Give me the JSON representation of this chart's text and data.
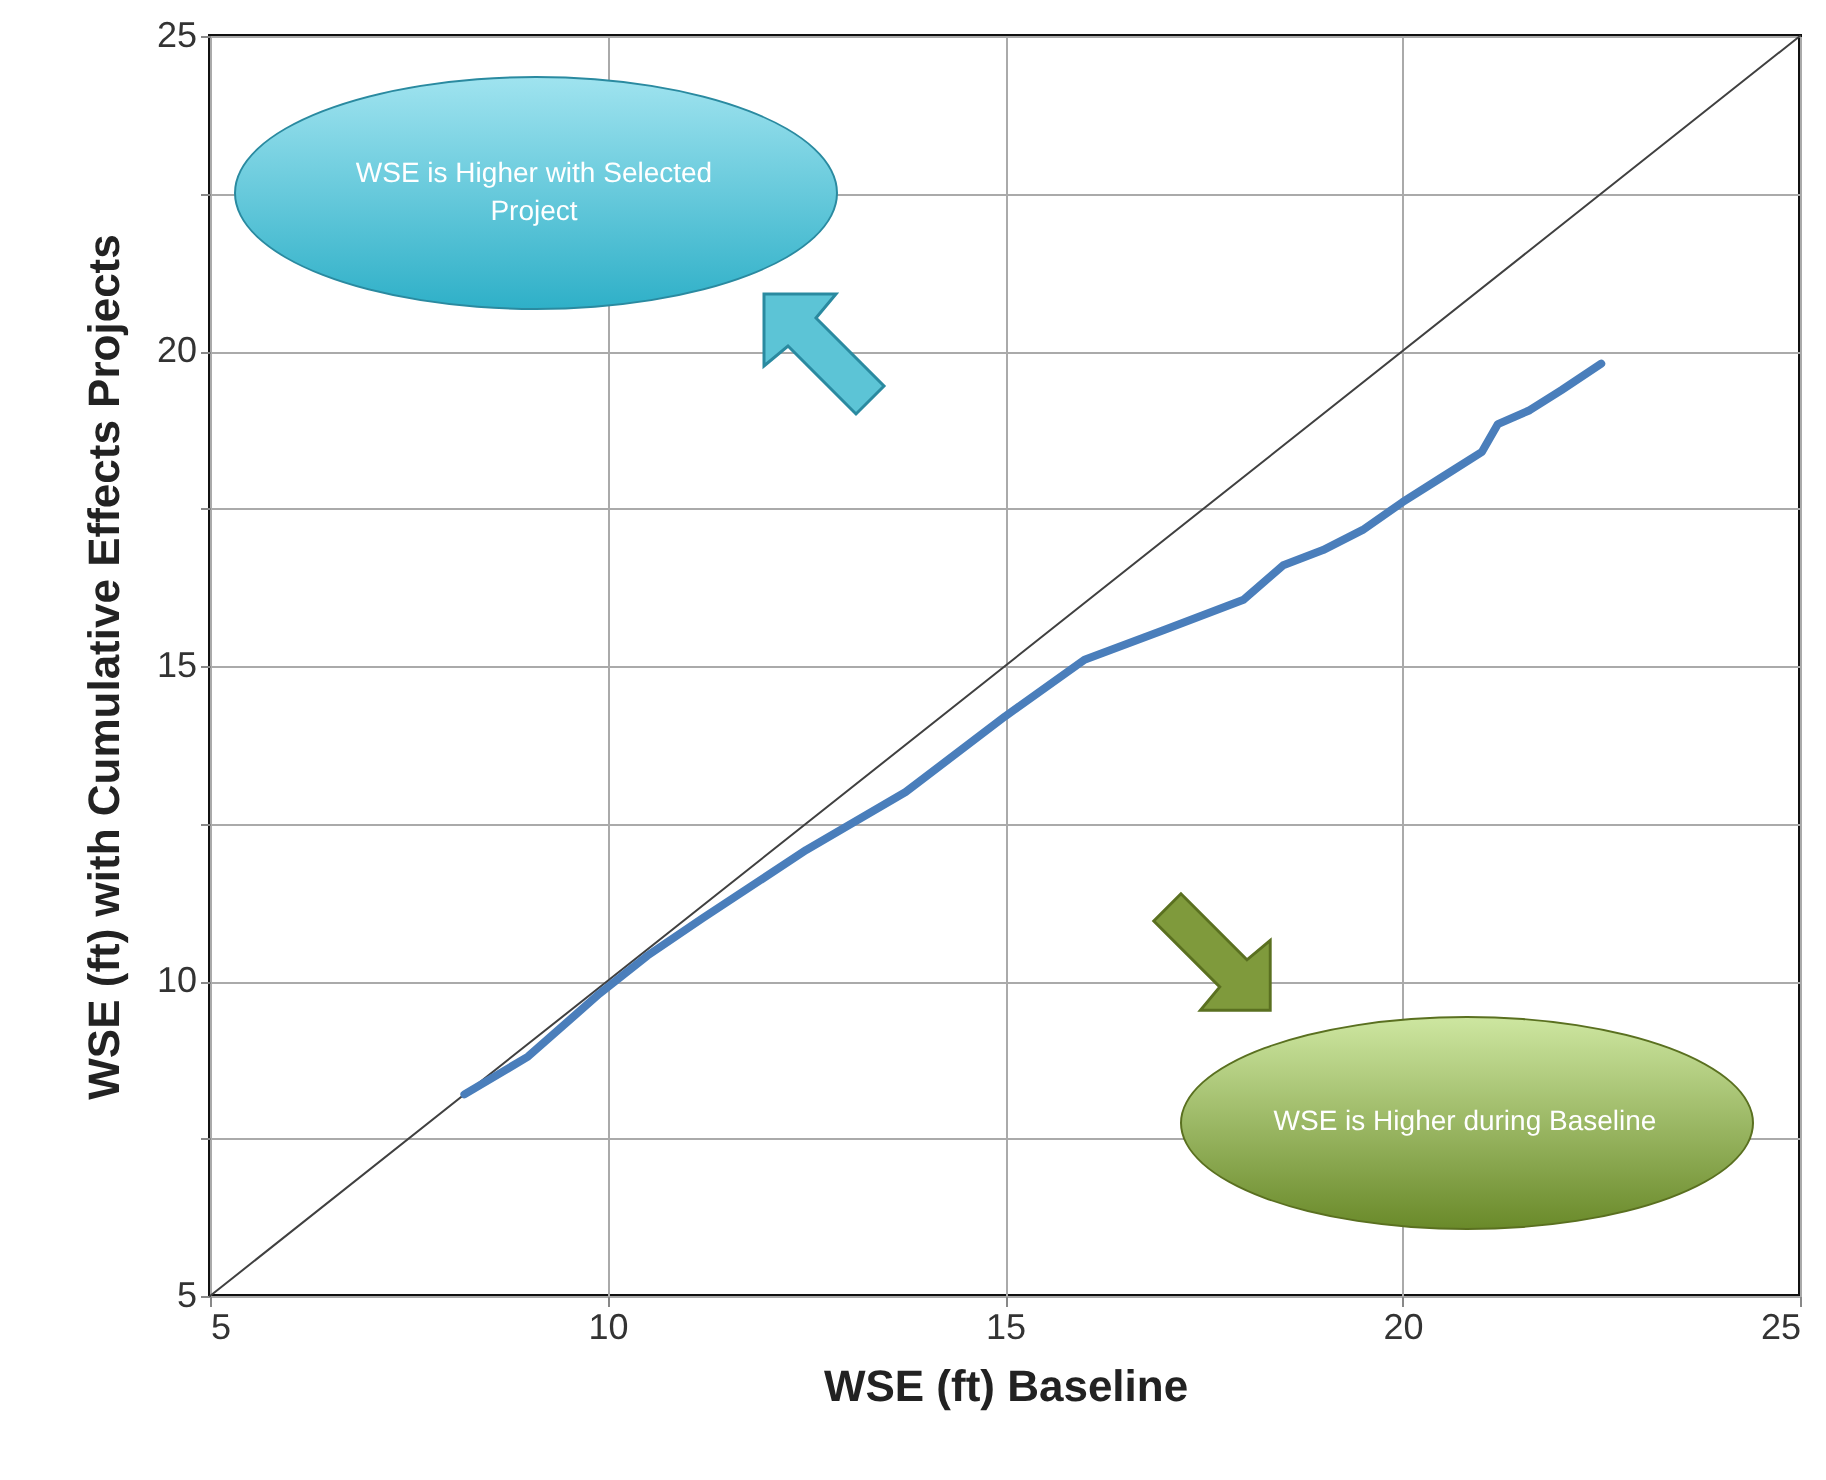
{
  "chart_data": {
    "type": "line",
    "xlabel": "WSE (ft) Baseline",
    "ylabel": "WSE (ft) with Cumulative Effects Projects",
    "xlim": [
      5,
      25
    ],
    "ylim": [
      5,
      25
    ],
    "xticks": [
      5,
      10,
      15,
      20,
      25
    ],
    "yticks": [
      5,
      {
        "value": 7.5,
        "label": null
      },
      10,
      {
        "value": 12.5,
        "label": null
      },
      15,
      {
        "value": 17.5,
        "label": null
      },
      20,
      {
        "value": 22.5,
        "label": null
      },
      25
    ],
    "grid": true,
    "marker": "none",
    "line_style": "solid",
    "annotations": [
      "WSE is Higher with Selected Project",
      "WSE is Higher during Baseline"
    ],
    "series": [
      {
        "color": "#404040",
        "x": [
          5,
          25
        ],
        "values": [
          5,
          25
        ]
      },
      {
        "color": "#4a7ebb",
        "x": [
          8.2,
          9.0,
          9.9,
          10.5,
          11.2,
          12.5,
          13.75,
          15.0,
          16.0,
          17.0,
          18.0,
          18.5,
          19.0,
          19.5,
          20.0,
          20.5,
          21.0,
          21.2,
          21.6,
          22.0,
          22.5
        ],
        "values": [
          8.2,
          8.8,
          9.8,
          10.4,
          11.0,
          12.08,
          13.0,
          14.2,
          15.1,
          15.57,
          16.05,
          16.6,
          16.84,
          17.16,
          17.6,
          18.0,
          18.4,
          18.84,
          19.06,
          19.38,
          19.8
        ]
      }
    ]
  }
}
